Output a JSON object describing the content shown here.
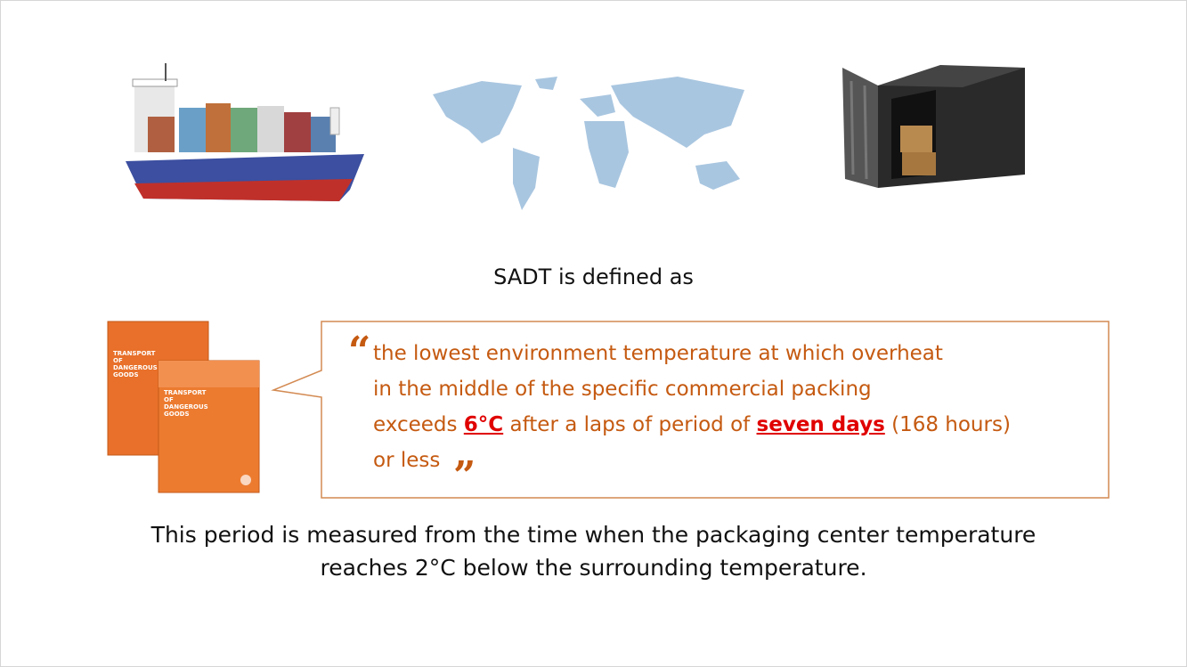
{
  "slide": {
    "heading": "SADT is defined as",
    "book_title": "TRANSPORT OF DANGEROUS GOODS",
    "quote": {
      "open_mark": "“",
      "close_mark": "”",
      "line1": "the lowest environment temperature at which overheat",
      "line2": "in the middle of the specific commercial packing",
      "line3": {
        "before": "exceeds",
        "temp": "6°C",
        "middle": "after a laps of period of",
        "days": "seven days",
        "after": "(168 hours)"
      },
      "line4": "or less"
    },
    "footer": {
      "line1": "This period is measured from the time when the packaging center temperature",
      "line2": "reaches 2°C below the surrounding temperature."
    }
  }
}
